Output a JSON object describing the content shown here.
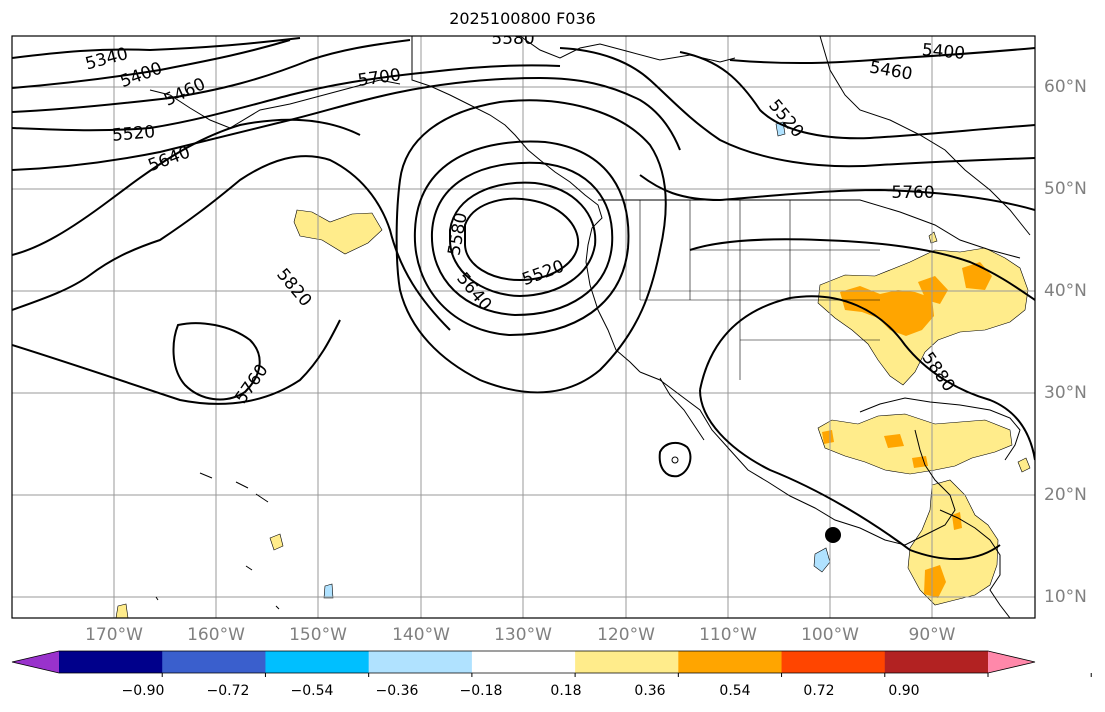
{
  "title": "2025100800 F036",
  "lat_labels": [
    "60°N",
    "50°N",
    "40°N",
    "30°N",
    "20°N",
    "10°N"
  ],
  "lon_labels": [
    "170°W",
    "160°W",
    "150°W",
    "140°W",
    "130°W",
    "120°W",
    "110°W",
    "100°W",
    "90°W"
  ],
  "contour_labels": [
    "5340",
    "5400",
    "5460",
    "5520",
    "5640",
    "5700",
    "5580",
    "5400",
    "5460",
    "5520",
    "5760",
    "5820",
    "5760",
    "5580",
    "5640",
    "5520",
    "5880"
  ],
  "colorbar": {
    "ticks": [
      "−0.90",
      "−0.72",
      "−0.54",
      "−0.36",
      "−0.18",
      "0.18",
      "0.36",
      "0.54",
      "0.72",
      "0.90"
    ],
    "colors": [
      "#9932cc",
      "#00008b",
      "#3a5fcd",
      "#00bfff",
      "#b0e2ff",
      "#ffffff",
      "#ffec8b",
      "#ffa500",
      "#ff4500",
      "#b22222",
      "#ff88aa"
    ]
  }
}
